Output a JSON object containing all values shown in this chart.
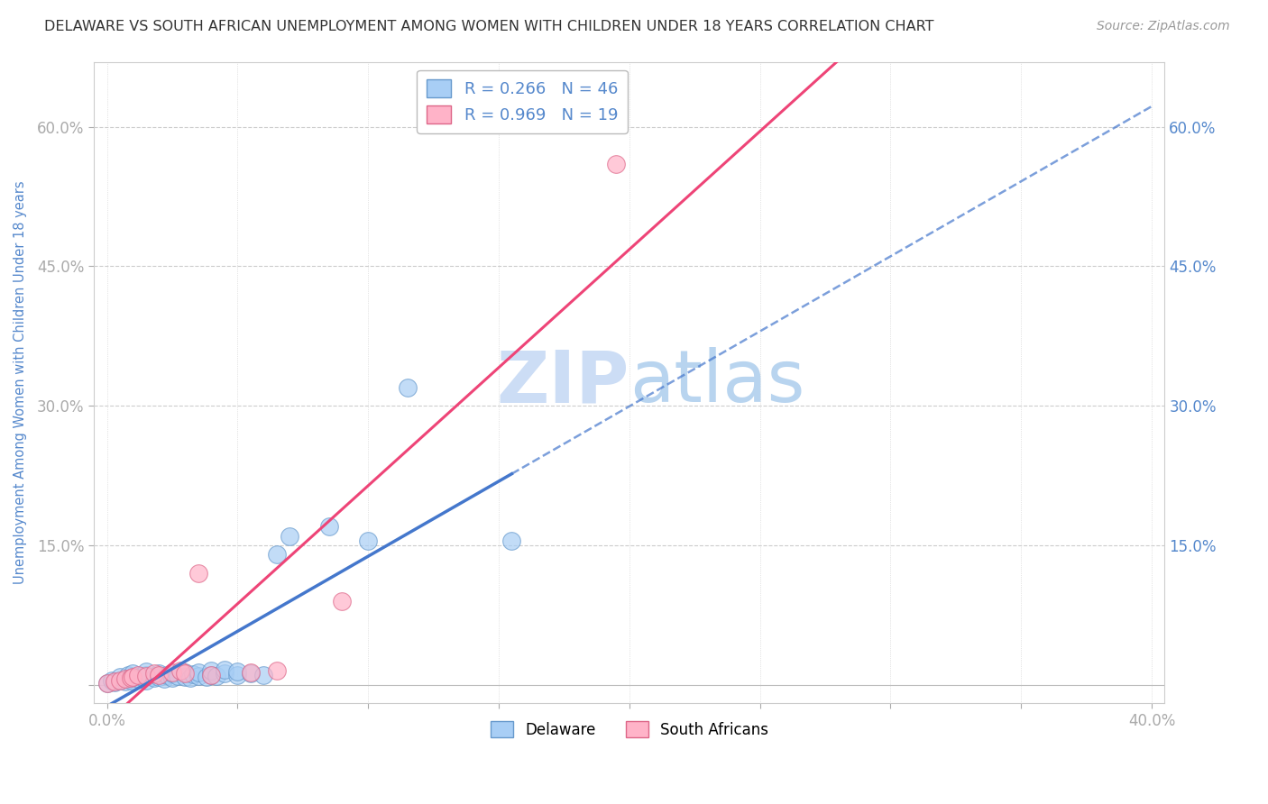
{
  "title": "DELAWARE VS SOUTH AFRICAN UNEMPLOYMENT AMONG WOMEN WITH CHILDREN UNDER 18 YEARS CORRELATION CHART",
  "source": "Source: ZipAtlas.com",
  "ylabel": "Unemployment Among Women with Children Under 18 years",
  "xlim": [
    -0.005,
    0.405
  ],
  "ylim": [
    -0.02,
    0.67
  ],
  "xtick_positions": [
    0.0,
    0.05,
    0.1,
    0.15,
    0.2,
    0.25,
    0.3,
    0.35,
    0.4
  ],
  "xticklabels": [
    "0.0%",
    "",
    "",
    "",
    "",
    "",
    "",
    "",
    "40.0%"
  ],
  "ytick_positions": [
    0.0,
    0.15,
    0.3,
    0.45,
    0.6
  ],
  "yticklabels": [
    "",
    "15.0%",
    "30.0%",
    "45.0%",
    "60.0%"
  ],
  "delaware_dot_color": "#a8cef5",
  "delaware_edge_color": "#6699cc",
  "sa_dot_color": "#ffb3c8",
  "sa_edge_color": "#dd6688",
  "delaware_line_color": "#4477cc",
  "sa_line_color": "#ee4477",
  "watermark_color": "#ccddf5",
  "legend_r_delaware": "R = 0.266",
  "legend_n_delaware": "N = 46",
  "legend_r_sa": "R = 0.969",
  "legend_n_sa": "N = 19",
  "delaware_scatter_x": [
    0.0,
    0.002,
    0.003,
    0.005,
    0.005,
    0.007,
    0.008,
    0.008,
    0.009,
    0.01,
    0.01,
    0.012,
    0.013,
    0.015,
    0.015,
    0.015,
    0.018,
    0.02,
    0.02,
    0.022,
    0.023,
    0.025,
    0.025,
    0.027,
    0.03,
    0.03,
    0.032,
    0.033,
    0.035,
    0.035,
    0.038,
    0.04,
    0.04,
    0.042,
    0.045,
    0.045,
    0.05,
    0.05,
    0.055,
    0.06,
    0.065,
    0.07,
    0.085,
    0.1,
    0.115,
    0.155
  ],
  "delaware_scatter_y": [
    0.002,
    0.005,
    0.003,
    0.005,
    0.008,
    0.004,
    0.006,
    0.01,
    0.005,
    0.008,
    0.012,
    0.006,
    0.009,
    0.005,
    0.01,
    0.014,
    0.007,
    0.008,
    0.012,
    0.006,
    0.01,
    0.007,
    0.012,
    0.009,
    0.008,
    0.013,
    0.007,
    0.011,
    0.009,
    0.013,
    0.008,
    0.01,
    0.015,
    0.009,
    0.012,
    0.016,
    0.01,
    0.014,
    0.012,
    0.01,
    0.14,
    0.16,
    0.17,
    0.155,
    0.32,
    0.155
  ],
  "sa_scatter_x": [
    0.0,
    0.003,
    0.005,
    0.007,
    0.009,
    0.01,
    0.012,
    0.015,
    0.018,
    0.02,
    0.025,
    0.028,
    0.03,
    0.035,
    0.04,
    0.055,
    0.065,
    0.09,
    0.195
  ],
  "sa_scatter_y": [
    0.002,
    0.004,
    0.005,
    0.006,
    0.007,
    0.008,
    0.01,
    0.009,
    0.012,
    0.01,
    0.013,
    0.015,
    0.012,
    0.12,
    0.01,
    0.013,
    0.015,
    0.09,
    0.56
  ],
  "background_color": "#ffffff",
  "grid_h_color": "#dddddd",
  "grid_v_color": "#dddddd",
  "title_color": "#333333",
  "axis_label_color": "#5588cc",
  "tick_label_color": "#5588cc"
}
